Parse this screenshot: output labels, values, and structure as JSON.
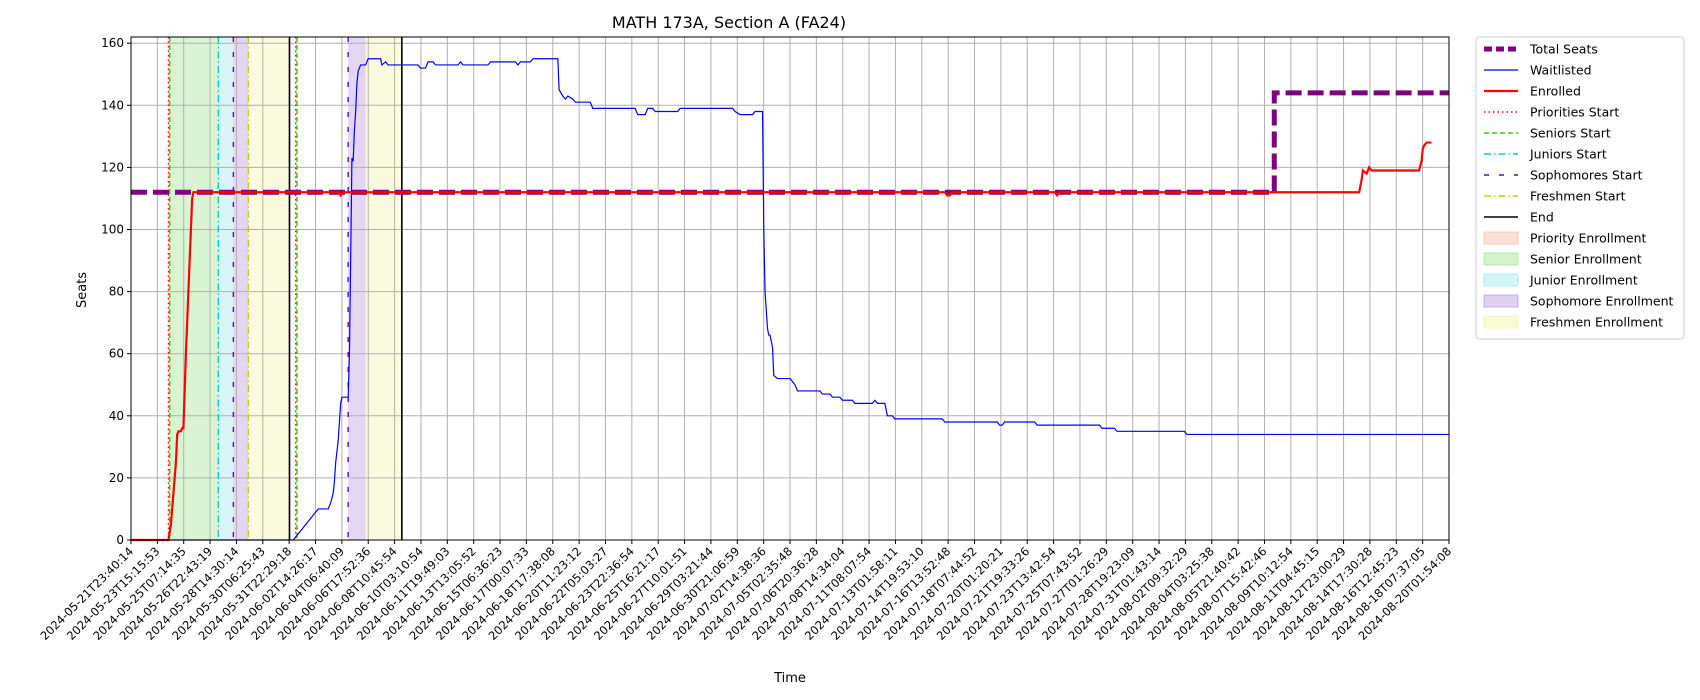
{
  "chart_data": {
    "type": "line",
    "title": "MATH 173A, Section A (FA24)",
    "xlabel": "Time",
    "ylabel": "Seats",
    "ylim": [
      0,
      162
    ],
    "yticks": [
      0,
      20,
      40,
      60,
      80,
      100,
      120,
      140,
      160
    ],
    "grid": true,
    "legend_position": "outside-right-top",
    "x_tick_labels": [
      "2024-05-21T23:40:14",
      "2024-05-23T15:15:53",
      "2024-05-25T07:14:35",
      "2024-05-26T22:43:19",
      "2024-05-28T14:30:14",
      "2024-05-30T06:25:43",
      "2024-05-31T22:29:18",
      "2024-06-02T14:26:17",
      "2024-06-04T06:40:09",
      "2024-06-06T17:52:36",
      "2024-06-08T10:45:54",
      "2024-06-10T03:10:54",
      "2024-06-11T19:49:03",
      "2024-06-13T13:05:52",
      "2024-06-15T06:36:23",
      "2024-06-17T00:07:33",
      "2024-06-18T17:38:08",
      "2024-06-20T11:23:12",
      "2024-06-22T05:03:27",
      "2024-06-23T22:36:54",
      "2024-06-25T16:21:17",
      "2024-06-27T10:01:51",
      "2024-06-29T03:21:44",
      "2024-06-30T21:06:59",
      "2024-07-02T14:38:36",
      "2024-07-05T02:35:48",
      "2024-07-06T20:36:28",
      "2024-07-08T14:34:04",
      "2024-07-11T08:07:54",
      "2024-07-13T01:58:11",
      "2024-07-14T19:53:10",
      "2024-07-16T13:52:48",
      "2024-07-18T07:44:52",
      "2024-07-20T01:20:21",
      "2024-07-21T19:33:26",
      "2024-07-23T13:42:54",
      "2024-07-25T07:43:52",
      "2024-07-27T01:26:29",
      "2024-07-28T19:23:09",
      "2024-07-31T01:43:14",
      "2024-08-02T09:32:29",
      "2024-08-04T03:25:38",
      "2024-08-05T21:40:42",
      "2024-08-07T15:42:46",
      "2024-08-09T10:12:54",
      "2024-08-11T04:45:15",
      "2024-08-12T23:00:29",
      "2024-08-14T17:30:28",
      "2024-08-16T12:45:23",
      "2024-08-18T07:37:05",
      "2024-08-20T01:54:08"
    ],
    "x_range_ticks": [
      0,
      52.8
    ],
    "series": [
      {
        "name": "Total Seats",
        "color": "#800080",
        "style": "dashed-thick",
        "points": [
          [
            0,
            112
          ],
          [
            45.8,
            112
          ],
          [
            45.8,
            144
          ],
          [
            52.8,
            144
          ]
        ]
      },
      {
        "name": "Waitlisted",
        "color": "#0000ff",
        "style": "solid-thin",
        "points": [
          [
            0,
            0
          ],
          [
            6.5,
            0
          ],
          [
            6.6,
            1
          ],
          [
            6.7,
            2
          ],
          [
            6.8,
            3
          ],
          [
            6.9,
            4
          ],
          [
            7.0,
            5
          ],
          [
            7.1,
            6
          ],
          [
            7.2,
            7
          ],
          [
            7.3,
            8
          ],
          [
            7.4,
            9
          ],
          [
            7.5,
            10
          ],
          [
            7.9,
            10
          ],
          [
            8.0,
            12
          ],
          [
            8.1,
            15
          ],
          [
            8.15,
            19
          ],
          [
            8.2,
            25
          ],
          [
            8.3,
            32
          ],
          [
            8.35,
            38
          ],
          [
            8.4,
            44
          ],
          [
            8.45,
            46
          ],
          [
            8.7,
            46
          ],
          [
            8.75,
            60
          ],
          [
            8.8,
            90
          ],
          [
            8.85,
            123
          ],
          [
            8.9,
            122
          ],
          [
            8.95,
            132
          ],
          [
            9.0,
            138
          ],
          [
            9.05,
            147
          ],
          [
            9.1,
            151
          ],
          [
            9.2,
            153
          ],
          [
            9.4,
            153
          ],
          [
            9.5,
            155
          ],
          [
            10.0,
            155
          ],
          [
            10.05,
            153
          ],
          [
            10.2,
            154
          ],
          [
            10.3,
            153
          ],
          [
            10.4,
            153
          ],
          [
            10.5,
            153
          ],
          [
            11.5,
            153
          ],
          [
            11.6,
            152
          ],
          [
            11.8,
            152
          ],
          [
            11.9,
            154
          ],
          [
            12.1,
            154
          ],
          [
            12.2,
            153
          ],
          [
            13.1,
            153
          ],
          [
            13.2,
            154
          ],
          [
            13.3,
            153
          ],
          [
            14.3,
            153
          ],
          [
            14.4,
            154
          ],
          [
            15.4,
            154
          ],
          [
            15.5,
            153
          ],
          [
            15.6,
            154
          ],
          [
            16.0,
            154
          ],
          [
            16.1,
            155
          ],
          [
            17.1,
            155
          ],
          [
            17.15,
            145
          ],
          [
            17.3,
            143
          ],
          [
            17.4,
            142
          ],
          [
            17.5,
            143
          ],
          [
            17.7,
            142
          ],
          [
            17.8,
            141
          ],
          [
            18.4,
            141
          ],
          [
            18.5,
            139
          ],
          [
            19.4,
            139
          ],
          [
            20.2,
            139
          ],
          [
            20.3,
            137
          ],
          [
            20.6,
            137
          ],
          [
            20.7,
            139
          ],
          [
            20.9,
            139
          ],
          [
            21.0,
            138
          ],
          [
            21.9,
            138
          ],
          [
            22.0,
            139
          ],
          [
            24.1,
            139
          ],
          [
            24.2,
            138
          ],
          [
            24.4,
            137
          ],
          [
            24.9,
            137
          ],
          [
            25.0,
            138
          ],
          [
            25.3,
            138
          ],
          [
            25.35,
            100
          ],
          [
            25.4,
            80
          ],
          [
            25.5,
            68
          ],
          [
            25.55,
            66
          ],
          [
            25.6,
            66
          ],
          [
            25.7,
            62
          ],
          [
            25.75,
            53
          ],
          [
            25.9,
            52
          ],
          [
            26.4,
            52
          ],
          [
            26.5,
            51
          ],
          [
            26.6,
            50
          ],
          [
            26.7,
            48
          ],
          [
            27.6,
            48
          ],
          [
            27.7,
            47
          ],
          [
            28.0,
            47
          ],
          [
            28.1,
            46
          ],
          [
            28.4,
            46
          ],
          [
            28.5,
            45
          ],
          [
            28.9,
            45
          ],
          [
            29.0,
            44
          ],
          [
            29.7,
            44
          ],
          [
            29.8,
            45
          ],
          [
            29.9,
            44
          ],
          [
            30.2,
            44
          ],
          [
            30.3,
            40
          ],
          [
            30.5,
            40
          ],
          [
            30.6,
            39
          ],
          [
            32.5,
            39
          ],
          [
            32.6,
            38
          ],
          [
            34.7,
            38
          ],
          [
            34.8,
            37
          ],
          [
            34.9,
            37
          ],
          [
            35.0,
            38
          ],
          [
            36.2,
            38
          ],
          [
            36.3,
            37
          ],
          [
            38.8,
            37
          ],
          [
            38.9,
            36
          ],
          [
            39.4,
            36
          ],
          [
            39.5,
            35
          ],
          [
            42.2,
            35
          ],
          [
            42.3,
            34
          ],
          [
            52.8,
            34
          ]
        ]
      },
      {
        "name": "Enrolled",
        "color": "#ff0000",
        "style": "solid-thick",
        "points": [
          [
            0,
            0
          ],
          [
            1.5,
            0
          ],
          [
            1.6,
            5
          ],
          [
            1.7,
            15
          ],
          [
            1.8,
            25
          ],
          [
            1.85,
            34
          ],
          [
            1.9,
            35
          ],
          [
            2.0,
            35
          ],
          [
            2.05,
            36
          ],
          [
            2.1,
            36
          ],
          [
            2.2,
            60
          ],
          [
            2.3,
            80
          ],
          [
            2.4,
            100
          ],
          [
            2.45,
            110
          ],
          [
            2.5,
            112
          ],
          [
            8.3,
            112
          ],
          [
            8.4,
            111
          ],
          [
            8.5,
            112
          ],
          [
            32.6,
            112
          ],
          [
            32.7,
            111
          ],
          [
            32.8,
            111
          ],
          [
            32.9,
            112
          ],
          [
            37.0,
            112
          ],
          [
            37.1,
            111
          ],
          [
            37.2,
            112
          ],
          [
            49.2,
            112
          ],
          [
            49.3,
            116
          ],
          [
            49.35,
            119
          ],
          [
            49.5,
            118
          ],
          [
            49.6,
            120
          ],
          [
            49.7,
            119
          ],
          [
            51.6,
            119
          ],
          [
            51.7,
            122
          ],
          [
            51.75,
            126
          ],
          [
            51.8,
            127
          ],
          [
            51.9,
            128
          ],
          [
            52.1,
            128
          ]
        ]
      }
    ],
    "vertical_markers": [
      {
        "name": "Priorities Start",
        "color": "#ff0000",
        "style": "dotted",
        "x": [
          1.5,
          6.6
        ]
      },
      {
        "name": "Seniors Start",
        "color": "#33cc00",
        "style": "dashed",
        "x": [
          1.55,
          6.65
        ]
      },
      {
        "name": "Juniors Start",
        "color": "#00cccc",
        "style": "dashdot",
        "x": [
          3.5
        ]
      },
      {
        "name": "Sophomores Start",
        "color": "#6600cc",
        "style": "loosedash",
        "x": [
          4.1,
          8.7
        ]
      },
      {
        "name": "Freshmen Start",
        "color": "#cccc00",
        "style": "dashdot",
        "x": [
          4.7
        ]
      },
      {
        "name": "End",
        "color": "#000000",
        "style": "solid",
        "x": [
          6.35,
          10.85
        ]
      }
    ],
    "shaded_regions": [
      {
        "name": "Priority Enrollment",
        "color": "#f4a582",
        "ranges": [
          [
            1.5,
            1.55
          ]
        ]
      },
      {
        "name": "Senior Enrollment",
        "color": "#7ddc6a",
        "ranges": [
          [
            1.55,
            3.5
          ]
        ]
      },
      {
        "name": "Junior Enrollment",
        "color": "#7ee0e8",
        "ranges": [
          [
            3.5,
            4.1
          ]
        ]
      },
      {
        "name": "Sophomore Enrollment",
        "color": "#a678d8",
        "ranges": [
          [
            4.1,
            4.7
          ],
          [
            8.7,
            9.4
          ]
        ]
      },
      {
        "name": "Freshmen Enrollment",
        "color": "#eef08a",
        "ranges": [
          [
            4.7,
            6.35
          ],
          [
            9.4,
            10.85
          ]
        ]
      }
    ],
    "legend": [
      {
        "label": "Total Seats",
        "kind": "line",
        "color": "#800080",
        "dash": "8,4",
        "width": 5
      },
      {
        "label": "Waitlisted",
        "kind": "line",
        "color": "#0000ff",
        "dash": "",
        "width": 1.2
      },
      {
        "label": "Enrolled",
        "kind": "line",
        "color": "#ff0000",
        "dash": "",
        "width": 2.2
      },
      {
        "label": "Priorities Start",
        "kind": "line",
        "color": "#ff0000",
        "dash": "1.5,3",
        "width": 1.4
      },
      {
        "label": "Seniors Start",
        "kind": "line",
        "color": "#33cc00",
        "dash": "5,3",
        "width": 1.4
      },
      {
        "label": "Juniors Start",
        "kind": "line",
        "color": "#00cccc",
        "dash": "7,3,1.5,3",
        "width": 1.4
      },
      {
        "label": "Sophomores Start",
        "kind": "line",
        "color": "#6600cc",
        "dash": "5,10",
        "width": 1.4
      },
      {
        "label": "Freshmen Start",
        "kind": "line",
        "color": "#cccc00",
        "dash": "7,3,1.5,3",
        "width": 1.4
      },
      {
        "label": "End",
        "kind": "line",
        "color": "#000000",
        "dash": "",
        "width": 1.6
      },
      {
        "label": "Priority Enrollment",
        "kind": "patch",
        "color": "#f4a582"
      },
      {
        "label": "Senior Enrollment",
        "kind": "patch",
        "color": "#7ddc6a"
      },
      {
        "label": "Junior Enrollment",
        "kind": "patch",
        "color": "#7ee0e8"
      },
      {
        "label": "Sophomore Enrollment",
        "kind": "patch",
        "color": "#a678d8"
      },
      {
        "label": "Freshmen Enrollment",
        "kind": "patch",
        "color": "#eef08a"
      }
    ]
  }
}
